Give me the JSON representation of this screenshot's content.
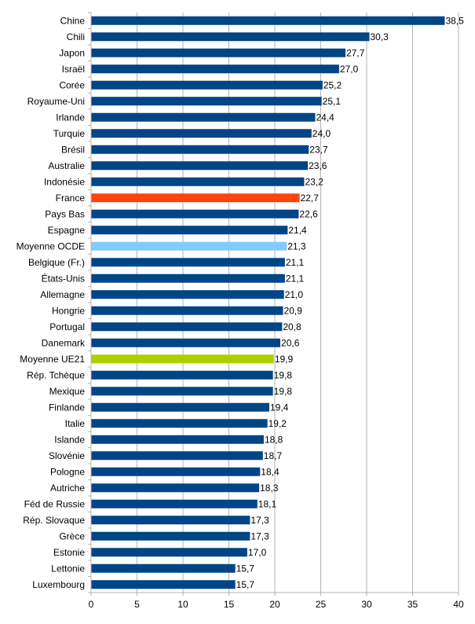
{
  "chart_data": {
    "type": "bar",
    "orientation": "horizontal",
    "title": "",
    "xlabel": "",
    "ylabel": "",
    "xlim": [
      0,
      40
    ],
    "x_ticks": [
      0,
      5,
      10,
      15,
      20,
      25,
      30,
      35,
      40
    ],
    "grid": true,
    "categories": [
      "Chine",
      "Chili",
      "Japon",
      "Israël",
      "Corée",
      "Royaume-Uni",
      "Irlande",
      "Turquie",
      "Brésil",
      "Australie",
      "Indonésie",
      "France",
      "Pays Bas",
      "Espagne",
      "Moyenne OCDE",
      "Belgique (Fr.)",
      "États-Unis",
      "Allemagne",
      "Hongrie",
      "Portugal",
      "Danemark",
      "Moyenne UE21",
      "Rép. Tchèque",
      "Mexique",
      "Finlande",
      "Italie",
      "Islande",
      "Slovénie",
      "Pologne",
      "Autriche",
      "Féd de Russie",
      "Rép. Slovaque",
      "Grèce",
      "Estonie",
      "Lettonie",
      "Luxembourg"
    ],
    "values": [
      38.5,
      30.3,
      27.7,
      27.0,
      25.2,
      25.1,
      24.4,
      24.0,
      23.7,
      23.6,
      23.2,
      22.7,
      22.6,
      21.4,
      21.3,
      21.1,
      21.1,
      21.0,
      20.9,
      20.8,
      20.6,
      19.9,
      19.8,
      19.8,
      19.4,
      19.2,
      18.8,
      18.7,
      18.4,
      18.3,
      18.1,
      17.3,
      17.3,
      17.0,
      15.7,
      15.7
    ],
    "value_labels": [
      "38,5",
      "30,3",
      "27,7",
      "27,0",
      "25,2",
      "25,1",
      "24,4",
      "24,0",
      "23,7",
      "23,6",
      "23,2",
      "22,7",
      "22,6",
      "21,4",
      "21,3",
      "21,1",
      "21,1",
      "21,0",
      "20,9",
      "20,8",
      "20,6",
      "19,9",
      "19,8",
      "19,8",
      "19,4",
      "19,2",
      "18,8",
      "18,7",
      "18,4",
      "18,3",
      "18,1",
      "17,3",
      "17,3",
      "17,0",
      "15,7",
      "15,7"
    ],
    "colors": {
      "default": "#004586",
      "highlights": {
        "France": "#ff420e",
        "Moyenne OCDE": "#83caff",
        "Moyenne UE21": "#aecf00"
      }
    }
  }
}
